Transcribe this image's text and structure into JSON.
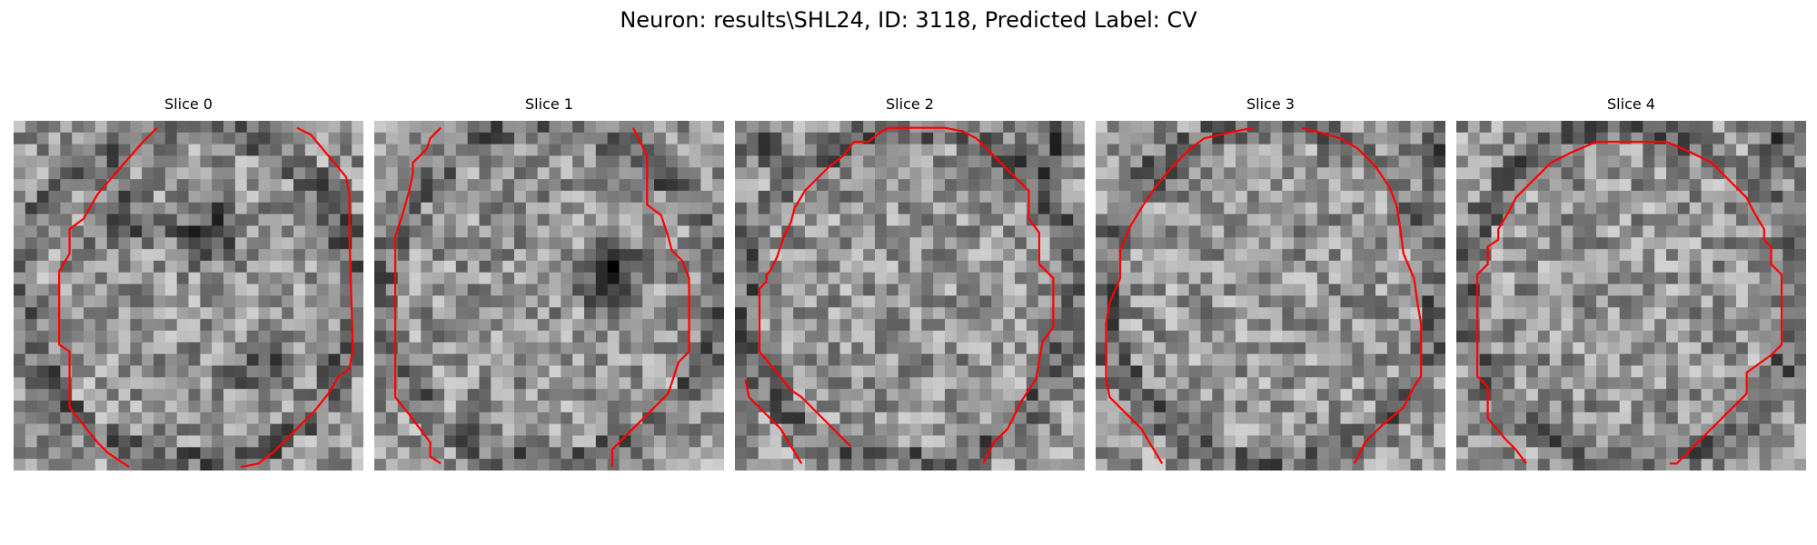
{
  "figure": {
    "title": "Neuron: results\\SHL24, ID: 3118, Predicted Label: CV"
  },
  "panels": [
    {
      "title": "Slice 0",
      "seed": 11,
      "contour": [
        [
          0.41,
          0.02
        ],
        [
          0.37,
          0.06
        ],
        [
          0.3,
          0.14
        ],
        [
          0.24,
          0.21
        ],
        [
          0.2,
          0.28
        ],
        [
          0.16,
          0.31
        ],
        [
          0.16,
          0.38
        ],
        [
          0.13,
          0.43
        ],
        [
          0.13,
          0.64
        ],
        [
          0.16,
          0.66
        ],
        [
          0.16,
          0.82
        ],
        [
          0.2,
          0.87
        ],
        [
          0.24,
          0.92
        ],
        [
          0.27,
          0.95
        ],
        [
          0.3,
          0.97
        ],
        [
          0.33,
          0.99
        ]
      ],
      "contour2": [
        [
          0.81,
          0.02
        ],
        [
          0.85,
          0.04
        ],
        [
          0.9,
          0.1
        ],
        [
          0.95,
          0.16
        ],
        [
          0.96,
          0.21
        ],
        [
          0.96,
          0.33
        ],
        [
          0.97,
          0.65
        ],
        [
          0.96,
          0.71
        ],
        [
          0.93,
          0.73
        ],
        [
          0.9,
          0.78
        ],
        [
          0.86,
          0.83
        ],
        [
          0.8,
          0.89
        ],
        [
          0.74,
          0.95
        ],
        [
          0.7,
          0.98
        ],
        [
          0.65,
          0.99
        ]
      ],
      "dark": [
        [
          0.55,
          0.3,
          0.15
        ],
        [
          0.3,
          0.28,
          0.12
        ],
        [
          0.7,
          0.7,
          0.12
        ]
      ]
    },
    {
      "title": "Slice 1",
      "seed": 23,
      "contour": [
        [
          0.19,
          0.02
        ],
        [
          0.16,
          0.05
        ],
        [
          0.15,
          0.08
        ],
        [
          0.11,
          0.12
        ],
        [
          0.11,
          0.15
        ],
        [
          0.1,
          0.2
        ],
        [
          0.08,
          0.27
        ],
        [
          0.06,
          0.33
        ],
        [
          0.06,
          0.79
        ],
        [
          0.1,
          0.84
        ],
        [
          0.13,
          0.88
        ],
        [
          0.16,
          0.92
        ],
        [
          0.16,
          0.96
        ],
        [
          0.19,
          0.98
        ]
      ],
      "contour2": [
        [
          0.74,
          0.02
        ],
        [
          0.76,
          0.06
        ],
        [
          0.78,
          0.1
        ],
        [
          0.78,
          0.24
        ],
        [
          0.82,
          0.27
        ],
        [
          0.84,
          0.33
        ],
        [
          0.85,
          0.37
        ],
        [
          0.88,
          0.4
        ],
        [
          0.9,
          0.45
        ],
        [
          0.9,
          0.66
        ],
        [
          0.87,
          0.69
        ],
        [
          0.85,
          0.75
        ],
        [
          0.84,
          0.78
        ],
        [
          0.8,
          0.82
        ],
        [
          0.74,
          0.88
        ],
        [
          0.68,
          0.94
        ],
        [
          0.68,
          0.99
        ]
      ],
      "dark": [
        [
          0.66,
          0.45,
          0.12
        ],
        [
          0.7,
          0.4,
          0.08
        ]
      ]
    },
    {
      "title": "Slice 2",
      "seed": 37,
      "contour": [
        [
          0.33,
          0.93
        ],
        [
          0.19,
          0.79
        ],
        [
          0.16,
          0.77
        ],
        [
          0.12,
          0.72
        ],
        [
          0.07,
          0.66
        ],
        [
          0.07,
          0.48
        ],
        [
          0.09,
          0.46
        ],
        [
          0.09,
          0.44
        ],
        [
          0.1,
          0.43
        ],
        [
          0.12,
          0.39
        ],
        [
          0.13,
          0.36
        ],
        [
          0.14,
          0.33
        ],
        [
          0.16,
          0.29
        ],
        [
          0.17,
          0.25
        ],
        [
          0.2,
          0.2
        ],
        [
          0.23,
          0.17
        ],
        [
          0.27,
          0.13
        ],
        [
          0.31,
          0.1
        ],
        [
          0.34,
          0.06
        ],
        [
          0.38,
          0.06
        ],
        [
          0.42,
          0.03
        ],
        [
          0.44,
          0.02
        ],
        [
          0.6,
          0.02
        ],
        [
          0.65,
          0.03
        ],
        [
          0.69,
          0.05
        ],
        [
          0.73,
          0.09
        ],
        [
          0.76,
          0.12
        ],
        [
          0.8,
          0.16
        ],
        [
          0.84,
          0.2
        ],
        [
          0.84,
          0.28
        ],
        [
          0.87,
          0.32
        ],
        [
          0.87,
          0.41
        ],
        [
          0.91,
          0.45
        ],
        [
          0.91,
          0.59
        ],
        [
          0.88,
          0.63
        ],
        [
          0.86,
          0.74
        ],
        [
          0.82,
          0.8
        ],
        [
          0.8,
          0.84
        ],
        [
          0.78,
          0.88
        ],
        [
          0.74,
          0.92
        ],
        [
          0.71,
          0.98
        ]
      ],
      "contour2": [
        [
          0.03,
          0.74
        ],
        [
          0.04,
          0.79
        ],
        [
          0.09,
          0.84
        ],
        [
          0.13,
          0.88
        ],
        [
          0.16,
          0.93
        ],
        [
          0.19,
          0.98
        ]
      ],
      "dark": [
        [
          0.9,
          0.05,
          0.12
        ],
        [
          0.05,
          0.05,
          0.1
        ]
      ]
    },
    {
      "title": "Slice 3",
      "seed": 41,
      "contour": [
        [
          0.45,
          0.02
        ],
        [
          0.4,
          0.03
        ],
        [
          0.31,
          0.05
        ],
        [
          0.27,
          0.08
        ],
        [
          0.22,
          0.13
        ],
        [
          0.17,
          0.19
        ],
        [
          0.13,
          0.25
        ],
        [
          0.1,
          0.3
        ],
        [
          0.07,
          0.37
        ],
        [
          0.07,
          0.45
        ],
        [
          0.04,
          0.52
        ],
        [
          0.03,
          0.58
        ],
        [
          0.03,
          0.74
        ],
        [
          0.04,
          0.79
        ],
        [
          0.09,
          0.84
        ],
        [
          0.13,
          0.88
        ],
        [
          0.16,
          0.93
        ],
        [
          0.19,
          0.98
        ]
      ],
      "contour2": [
        [
          0.59,
          0.02
        ],
        [
          0.63,
          0.03
        ],
        [
          0.7,
          0.05
        ],
        [
          0.75,
          0.08
        ],
        [
          0.8,
          0.13
        ],
        [
          0.84,
          0.19
        ],
        [
          0.86,
          0.24
        ],
        [
          0.87,
          0.3
        ],
        [
          0.88,
          0.38
        ],
        [
          0.91,
          0.45
        ],
        [
          0.92,
          0.52
        ],
        [
          0.93,
          0.58
        ],
        [
          0.93,
          0.73
        ],
        [
          0.91,
          0.76
        ],
        [
          0.88,
          0.82
        ],
        [
          0.82,
          0.87
        ],
        [
          0.77,
          0.92
        ],
        [
          0.74,
          0.98
        ]
      ],
      "dark": [
        [
          0.98,
          0.1,
          0.1
        ]
      ]
    },
    {
      "title": "Slice 4",
      "seed": 53,
      "contour": [
        [
          0.4,
          0.06
        ],
        [
          0.33,
          0.09
        ],
        [
          0.27,
          0.12
        ],
        [
          0.24,
          0.15
        ],
        [
          0.21,
          0.18
        ],
        [
          0.17,
          0.22
        ],
        [
          0.15,
          0.26
        ],
        [
          0.12,
          0.31
        ],
        [
          0.12,
          0.34
        ],
        [
          0.09,
          0.36
        ],
        [
          0.09,
          0.41
        ],
        [
          0.06,
          0.44
        ],
        [
          0.06,
          0.73
        ],
        [
          0.09,
          0.76
        ],
        [
          0.09,
          0.85
        ],
        [
          0.14,
          0.91
        ],
        [
          0.17,
          0.94
        ],
        [
          0.2,
          0.98
        ]
      ],
      "contour2": [
        [
          0.4,
          0.06
        ],
        [
          0.6,
          0.06
        ],
        [
          0.67,
          0.09
        ],
        [
          0.73,
          0.12
        ],
        [
          0.76,
          0.15
        ],
        [
          0.79,
          0.18
        ],
        [
          0.83,
          0.22
        ],
        [
          0.85,
          0.26
        ],
        [
          0.88,
          0.31
        ],
        [
          0.88,
          0.34
        ],
        [
          0.9,
          0.36
        ],
        [
          0.9,
          0.41
        ],
        [
          0.93,
          0.44
        ],
        [
          0.93,
          0.64
        ],
        [
          0.9,
          0.67
        ],
        [
          0.83,
          0.72
        ],
        [
          0.83,
          0.78
        ],
        [
          0.77,
          0.84
        ],
        [
          0.72,
          0.89
        ],
        [
          0.67,
          0.94
        ],
        [
          0.63,
          0.98
        ],
        [
          0.61,
          0.98
        ]
      ],
      "dark": [
        [
          0.95,
          0.05,
          0.12
        ]
      ]
    }
  ],
  "colors": {
    "contour": "#ff0000",
    "text": "#000000",
    "background": "#ffffff"
  }
}
